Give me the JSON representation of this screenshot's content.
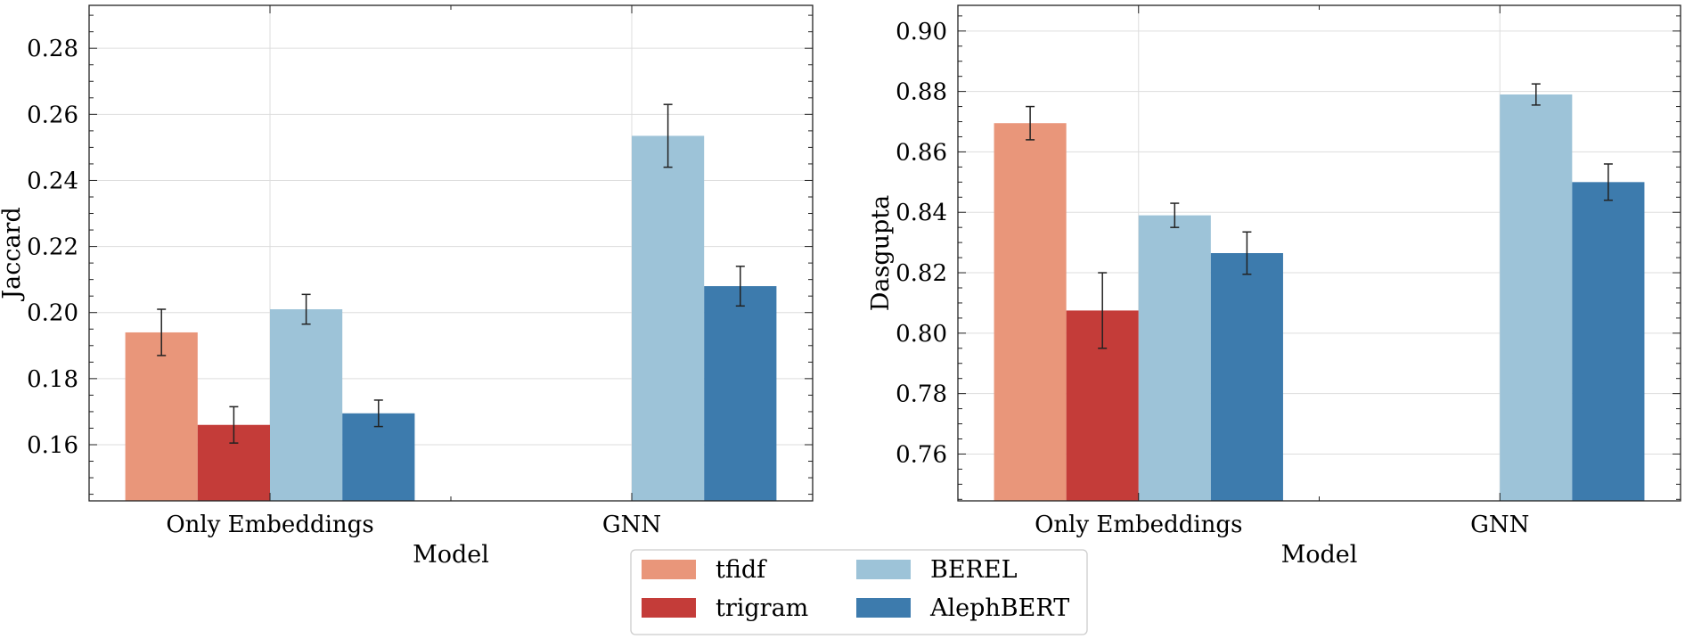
{
  "colors": {
    "tfidf": "#E9967A",
    "trigram": "#C43C39",
    "BEREL": "#9DC3D8",
    "AlephBERT": "#3D7BAD",
    "grid": "#dddddd",
    "errorbar": "#222222"
  },
  "legend": {
    "placement": "bottom-center",
    "entries": [
      {
        "key": "tfidf",
        "label": "tfidf"
      },
      {
        "key": "trigram",
        "label": "trigram"
      },
      {
        "key": "BEREL",
        "label": "BEREL"
      },
      {
        "key": "AlephBERT",
        "label": "AlephBERT"
      }
    ]
  },
  "chart_data": [
    {
      "type": "bar",
      "title": "",
      "xlabel": "Model",
      "ylabel": "Jaccard",
      "categories": [
        "Only Embeddings",
        "GNN"
      ],
      "ylim": [
        0.143,
        0.293
      ],
      "yticks": [
        0.16,
        0.18,
        0.2,
        0.22,
        0.24,
        0.26,
        0.28
      ],
      "ytick_labels": [
        "0.16",
        "0.18",
        "0.20",
        "0.22",
        "0.24",
        "0.26",
        "0.28"
      ],
      "grid": true,
      "series": [
        {
          "name": "tfidf",
          "values": [
            0.194,
            null
          ],
          "errors": [
            0.007,
            null
          ]
        },
        {
          "name": "trigram",
          "values": [
            0.166,
            null
          ],
          "errors": [
            0.0055,
            null
          ]
        },
        {
          "name": "BEREL",
          "values": [
            0.201,
            0.2535
          ],
          "errors": [
            0.0045,
            0.0095
          ]
        },
        {
          "name": "AlephBERT",
          "values": [
            0.1695,
            0.208
          ],
          "errors": [
            0.004,
            0.006
          ]
        }
      ]
    },
    {
      "type": "bar",
      "title": "",
      "xlabel": "Model",
      "ylabel": "Dasgupta",
      "categories": [
        "Only Embeddings",
        "GNN"
      ],
      "ylim": [
        0.7445,
        0.9085
      ],
      "yticks": [
        0.76,
        0.78,
        0.8,
        0.82,
        0.84,
        0.86,
        0.88,
        0.9
      ],
      "ytick_labels": [
        "0.76",
        "0.78",
        "0.80",
        "0.82",
        "0.84",
        "0.86",
        "0.88",
        "0.90"
      ],
      "grid": true,
      "series": [
        {
          "name": "tfidf",
          "values": [
            0.8695,
            null
          ],
          "errors": [
            0.0055,
            null
          ]
        },
        {
          "name": "trigram",
          "values": [
            0.8075,
            null
          ],
          "errors": [
            0.0125,
            null
          ]
        },
        {
          "name": "BEREL",
          "values": [
            0.839,
            0.879
          ],
          "errors": [
            0.004,
            0.0035
          ]
        },
        {
          "name": "AlephBERT",
          "values": [
            0.8265,
            0.85
          ],
          "errors": [
            0.007,
            0.006
          ]
        }
      ]
    }
  ]
}
